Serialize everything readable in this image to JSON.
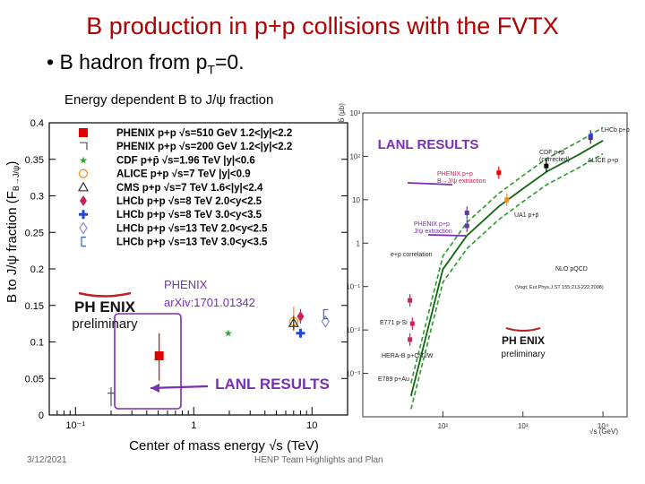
{
  "slide": {
    "title": "B production in p+p collisions with the FVTX",
    "bullet": "B hadron from p",
    "bullet_sub": "T",
    "bullet_tail": "=0.",
    "date": "3/12/2021",
    "footer": "HENP Team Highlights and Plan",
    "phenix_note_line1": "PHENIX",
    "phenix_note_line2": "arXiv:1701.01342",
    "lanl_results_left": "LANL RESULTS",
    "lanl_results_right": "LANL RESULTS",
    "logo_text_left": "PH  ENIX",
    "logo_sub_left": "preliminary",
    "logo_text_right": "PH  ENIX",
    "logo_sub_right": "preliminary"
  },
  "chart_data": [
    {
      "type": "scatter",
      "title": "Energy dependent B to J/ψ fraction",
      "xlabel": "Center of mass energy √s (TeV)",
      "ylabel": "B to J/ψ fraction (F",
      "ylabel_sub": "B→J/ψ",
      "ylabel_tail": ")",
      "xscale": "log",
      "xlim": [
        0.06,
        20
      ],
      "ylim": [
        0,
        0.4
      ],
      "x_ticks": [
        {
          "value": 0.1,
          "label": "10⁻¹"
        },
        {
          "value": 1,
          "label": "1"
        },
        {
          "value": 10,
          "label": "10"
        }
      ],
      "y_ticks": [
        {
          "value": 0,
          "label": "0"
        },
        {
          "value": 0.05,
          "label": "0.05"
        },
        {
          "value": 0.1,
          "label": "0.1"
        },
        {
          "value": 0.15,
          "label": "0.15"
        },
        {
          "value": 0.2,
          "label": "0.2"
        },
        {
          "value": 0.25,
          "label": "0.25"
        },
        {
          "value": 0.3,
          "label": "0.3"
        },
        {
          "value": 0.35,
          "label": "0.35"
        },
        {
          "value": 0.4,
          "label": "0.4"
        }
      ],
      "legend_position": "top",
      "series": [
        {
          "name": "PHENIX p+p √s=510 GeV 1.2<|y|<2.2",
          "color": "#e00000",
          "marker": "square-filled",
          "points": [
            {
              "x": 0.51,
              "y": 0.081,
              "ylow": 0.047,
              "yhigh": 0.112
            }
          ]
        },
        {
          "name": "PHENIX p+p √s=200 GeV 1.2<|y|<2.2",
          "color": "#555555",
          "marker": "square-open",
          "points": [
            {
              "x": 0.2,
              "y": 0.025,
              "ylow": 0.012,
              "yhigh": 0.038
            }
          ]
        },
        {
          "name": "CDF p+p̄ √s=1.96 TeV |y|<0.6",
          "color": "#22aa22",
          "marker": "star",
          "points": [
            {
              "x": 1.96,
              "y": 0.112
            }
          ]
        },
        {
          "name": "ALICE p+p √s=7 TeV |y|<0.9",
          "color": "#ff8800",
          "marker": "circle-open",
          "points": [
            {
              "x": 7,
              "y": 0.128,
              "ylow": 0.115,
              "yhigh": 0.148
            }
          ]
        },
        {
          "name": "CMS p+p √s=7 TeV 1.6<|y|<2.4",
          "color": "#333333",
          "marker": "triangle-open",
          "points": [
            {
              "x": 7,
              "y": 0.126,
              "ylow": 0.116,
              "yhigh": 0.136
            }
          ]
        },
        {
          "name": "LHCb p+p √s=8 TeV 2.0<y<2.5",
          "color": "#cc2255",
          "marker": "diamond-filled",
          "points": [
            {
              "x": 8,
              "y": 0.135,
              "ylow": 0.125,
              "yhigh": 0.145
            }
          ]
        },
        {
          "name": "LHCb p+p √s=8 TeV 3.0<y<3.5",
          "color": "#2244dd",
          "marker": "cross",
          "points": [
            {
              "x": 8,
              "y": 0.112
            }
          ]
        },
        {
          "name": "LHCb p+p √s=13 TeV 2.0<y<2.5",
          "color": "#8888cc",
          "marker": "diamond-open",
          "points": [
            {
              "x": 13,
              "y": 0.128
            }
          ]
        },
        {
          "name": "LHCb p+p √s=13 TeV 3.0<y<3.5",
          "color": "#3366cc",
          "marker": "bracket",
          "points": [
            {
              "x": 13,
              "y": 0.138
            }
          ]
        }
      ]
    },
    {
      "type": "scatter",
      "title": "",
      "xlabel": "√s (GeV)",
      "ylabel": "σ_bb̄ (µb)",
      "xscale": "log",
      "yscale": "log",
      "xlim": [
        10,
        20000
      ],
      "ylim": [
        0.0001,
        1000
      ],
      "x_ticks": [
        {
          "value": 100,
          "label": "10²"
        },
        {
          "value": 1000,
          "label": "10³"
        },
        {
          "value": 10000,
          "label": "10⁴"
        }
      ],
      "y_ticks": [
        {
          "value": 1000,
          "label": "10³"
        },
        {
          "value": 100,
          "label": "10²"
        },
        {
          "value": 10,
          "label": "10"
        },
        {
          "value": 1,
          "label": "1"
        },
        {
          "value": 0.1,
          "label": "10⁻¹"
        },
        {
          "value": 0.01,
          "label": "10⁻²"
        },
        {
          "value": 0.001,
          "label": "10⁻³"
        }
      ],
      "band": {
        "name": "NLO pQCD",
        "reference": "(Vogt; Eur.Phys.J.ST 155:213-222,2008)",
        "x": [
          40,
          100,
          200,
          500,
          1000,
          2000,
          5000,
          10000
        ],
        "y": [
          0.0003,
          0.25,
          1.5,
          7,
          18,
          45,
          110,
          230
        ]
      },
      "series": [
        {
          "name": "PHENIX p+p B→J/ψ extraction",
          "color": "#e00000",
          "points": [
            {
              "x": 500,
              "y": 42
            }
          ]
        },
        {
          "name": "PHENIX p+p J/ψ extraction",
          "color": "#6633aa",
          "points": [
            {
              "x": 200,
              "y": 5
            }
          ]
        },
        {
          "name": "e+p correlation",
          "color": "#6633aa",
          "points": [
            {
              "x": 200,
              "y": 2.5
            }
          ]
        },
        {
          "name": "UA1 p+p̄",
          "color": "#ff8800",
          "points": [
            {
              "x": 630,
              "y": 10
            }
          ]
        },
        {
          "name": "CDF p+p̄ (corrected)",
          "color": "#000000",
          "points": [
            {
              "x": 1960,
              "y": 60
            }
          ]
        },
        {
          "name": "ALICE p+p",
          "color": "#cc0000",
          "points": [
            {
              "x": 7000,
              "y": 270
            }
          ]
        },
        {
          "name": "LHCb p+p",
          "color": "#2244dd",
          "points": [
            {
              "x": 7000,
              "y": 290
            }
          ]
        },
        {
          "name": "E771 p-Si",
          "color": "#cc2255",
          "points": [
            {
              "x": 38.8,
              "y": 0.048
            }
          ]
        },
        {
          "name": "HERA-B p+C/Ti/W",
          "color": "#cc2255",
          "points": [
            {
              "x": 41.6,
              "y": 0.014
            }
          ]
        },
        {
          "name": "E789 p+Au",
          "color": "#cc2255",
          "points": [
            {
              "x": 38.8,
              "y": 0.006
            }
          ]
        }
      ]
    }
  ]
}
